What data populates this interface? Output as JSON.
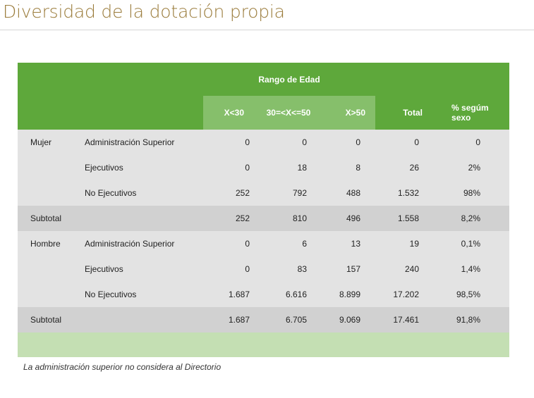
{
  "page": {
    "title": "Diversidad de la dotación propia"
  },
  "table": {
    "group_header": "Rango de Edad",
    "columns": {
      "age1": "X<30",
      "age2": "30=<X<=50",
      "age3": "X>50",
      "total": "Total",
      "pct": "% segúm sexo"
    },
    "rows": [
      {
        "group": "Mujer",
        "category": "Administración Superior",
        "age1": "0",
        "age2": "0",
        "age3": "0",
        "total": "0",
        "pct": "0"
      },
      {
        "group": "",
        "category": "Ejecutivos",
        "age1": "0",
        "age2": "18",
        "age3": "8",
        "total": "26",
        "pct": "2%"
      },
      {
        "group": "",
        "category": "No Ejecutivos",
        "age1": "252",
        "age2": "792",
        "age3": "488",
        "total": "1.532",
        "pct": "98%"
      },
      {
        "group": "Subtotal",
        "category": "",
        "age1": "252",
        "age2": "810",
        "age3": "496",
        "total": "1.558",
        "pct": "8,2%"
      },
      {
        "group": "Hombre",
        "category": "Administración Superior",
        "age1": "0",
        "age2": "6",
        "age3": "13",
        "total": "19",
        "pct": "0,1%"
      },
      {
        "group": "",
        "category": "Ejecutivos",
        "age1": "0",
        "age2": "83",
        "age3": "157",
        "total": "240",
        "pct": "1,4%"
      },
      {
        "group": "",
        "category": "No Ejecutivos",
        "age1": "1.687",
        "age2": "6.616",
        "age3": "8.899",
        "total": "17.202",
        "pct": "98,5%"
      },
      {
        "group": "Subtotal",
        "category": "",
        "age1": "1.687",
        "age2": "6.705",
        "age3": "9.069",
        "total": "17.461",
        "pct": "91,8%"
      }
    ]
  },
  "note": "La administración superior no considera al Directorio",
  "colors": {
    "title": "#9a7b3a",
    "header_green": "#5ea83b",
    "header_light_green": "#86bf6b",
    "row_gray": "#e3e3e3",
    "subtotal_gray": "#d1d1d1",
    "footer_green": "#c4dfb3"
  }
}
